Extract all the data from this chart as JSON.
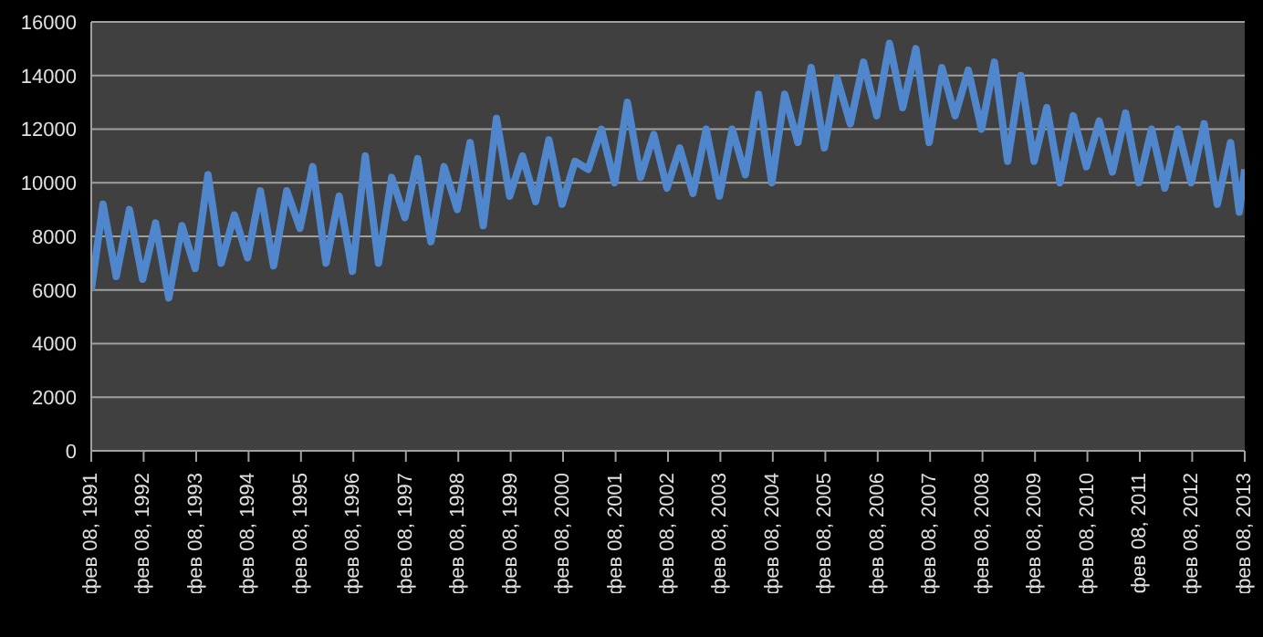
{
  "chart_data": {
    "type": "line",
    "xlim": [
      "1991-02-08",
      "2013-02-08"
    ],
    "xticks": [
      {
        "value": "1991-02-08",
        "label": "фев 08, 1991"
      },
      {
        "value": "1992-02-08",
        "label": "фев 08, 1992"
      },
      {
        "value": "1993-02-08",
        "label": "фев 08, 1993"
      },
      {
        "value": "1994-02-08",
        "label": "фев 08, 1994"
      },
      {
        "value": "1995-02-08",
        "label": "фев 08, 1995"
      },
      {
        "value": "1996-02-08",
        "label": "фев 08, 1996"
      },
      {
        "value": "1997-02-08",
        "label": "фев 08, 1997"
      },
      {
        "value": "1998-02-08",
        "label": "фев 08, 1998"
      },
      {
        "value": "1999-02-08",
        "label": "фев 08, 1999"
      },
      {
        "value": "2000-02-08",
        "label": "фев 08, 2000"
      },
      {
        "value": "2001-02-08",
        "label": "фев 08, 2001"
      },
      {
        "value": "2002-02-08",
        "label": "фев 08, 2002"
      },
      {
        "value": "2003-02-08",
        "label": "фев 08, 2003"
      },
      {
        "value": "2004-02-08",
        "label": "фев 08, 2004"
      },
      {
        "value": "2005-02-08",
        "label": "фев 08, 2005"
      },
      {
        "value": "2006-02-08",
        "label": "фев 08, 2006"
      },
      {
        "value": "2007-02-08",
        "label": "фев 08, 2007"
      },
      {
        "value": "2008-02-08",
        "label": "фев 08, 2008"
      },
      {
        "value": "2009-02-08",
        "label": "фев 08, 2009"
      },
      {
        "value": "2010-02-08",
        "label": "фев 08, 2010"
      },
      {
        "value": "2011-02-08",
        "label": "фев 08, 2011"
      },
      {
        "value": "2012-02-08",
        "label": "фев 08, 2012"
      },
      {
        "value": "2013-02-08",
        "label": "фев 08, 2013"
      }
    ],
    "ylim": [
      0,
      16000
    ],
    "yticks": [
      0,
      2000,
      4000,
      6000,
      8000,
      10000,
      12000,
      14000,
      16000
    ],
    "grid": "y",
    "marker": "none",
    "line_style": "solid",
    "x": [
      "1991-02-08",
      "1991-05",
      "1991-08",
      "1991-11",
      "1992-02",
      "1992-05",
      "1992-08",
      "1992-11",
      "1993-02",
      "1993-05",
      "1993-08",
      "1993-11",
      "1994-02",
      "1994-05",
      "1994-08",
      "1994-11",
      "1995-02",
      "1995-05",
      "1995-08",
      "1995-11",
      "1996-02",
      "1996-05",
      "1996-08",
      "1996-11",
      "1997-02",
      "1997-05",
      "1997-08",
      "1997-11",
      "1998-02",
      "1998-05",
      "1998-08",
      "1998-11",
      "1999-02",
      "1999-05",
      "1999-08",
      "1999-11",
      "2000-02",
      "2000-05",
      "2000-08",
      "2000-11",
      "2001-02",
      "2001-05",
      "2001-08",
      "2001-11",
      "2002-02",
      "2002-05",
      "2002-08",
      "2002-11",
      "2003-02",
      "2003-05",
      "2003-08",
      "2003-11",
      "2004-02",
      "2004-05",
      "2004-08",
      "2004-11",
      "2005-02",
      "2005-05",
      "2005-08",
      "2005-11",
      "2006-02",
      "2006-05",
      "2006-08",
      "2006-11",
      "2007-02",
      "2007-05",
      "2007-08",
      "2007-11",
      "2008-02",
      "2008-05",
      "2008-08",
      "2008-11",
      "2009-02",
      "2009-05",
      "2009-08",
      "2009-11",
      "2010-02",
      "2010-05",
      "2010-08",
      "2010-11",
      "2011-02",
      "2011-05",
      "2011-08",
      "2011-11",
      "2012-02",
      "2012-05",
      "2012-08",
      "2012-11",
      "2013-01",
      "2013-02-08"
    ],
    "series": [
      {
        "color": "#4f86cc",
        "values": [
          6000,
          9200,
          6500,
          9000,
          6400,
          8500,
          5700,
          8400,
          6800,
          10300,
          7000,
          8800,
          7200,
          9700,
          6900,
          9700,
          8300,
          10600,
          7000,
          9500,
          6700,
          11000,
          7000,
          10200,
          8700,
          10900,
          7800,
          10600,
          9000,
          11500,
          8400,
          12400,
          9500,
          11000,
          9300,
          11600,
          9200,
          10800,
          10500,
          12000,
          10000,
          13000,
          10200,
          11800,
          9800,
          11300,
          9600,
          12000,
          9500,
          12000,
          10300,
          13300,
          10000,
          13300,
          11500,
          14300,
          11300,
          13900,
          12200,
          14500,
          12500,
          15200,
          12800,
          15000,
          11500,
          14300,
          12500,
          14200,
          12000,
          14500,
          10800,
          14000,
          10800,
          12800,
          10000,
          12500,
          10600,
          12300,
          10400,
          12600,
          10000,
          12000,
          9800,
          12000,
          10000,
          12200,
          9200,
          11500,
          8900,
          10500
        ]
      }
    ]
  }
}
